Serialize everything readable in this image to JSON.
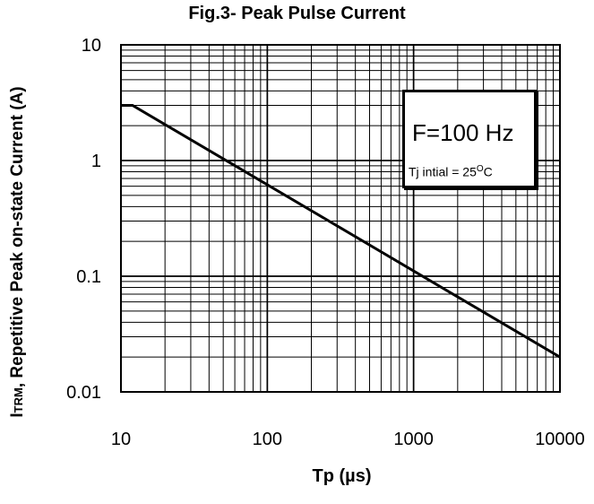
{
  "chart_data": {
    "type": "line",
    "title": "Fig.3- Peak Pulse Current",
    "xlabel": "Tp (µs)",
    "ylabel_symbol": "I",
    "ylabel_subscript": "TRM",
    "ylabel_rest": ", Repetitive Peak on-state Current (A)",
    "x_scale": "log",
    "y_scale": "log",
    "xlim": [
      10,
      10000
    ],
    "ylim": [
      0.01,
      10
    ],
    "x_ticks": [
      "10",
      "100",
      "1000",
      "10000"
    ],
    "y_ticks": [
      "10",
      "1",
      "0.1",
      "0.01"
    ],
    "grid": true,
    "legend": {
      "position": "top-right",
      "line1": "F=100 Hz",
      "line2_prefix": "Tj   intial = 25",
      "line2_sup": "O",
      "line2_suffix": "C"
    },
    "series": [
      {
        "x": [
          10,
          12,
          10000
        ],
        "y": [
          3,
          3,
          0.02
        ]
      }
    ]
  }
}
